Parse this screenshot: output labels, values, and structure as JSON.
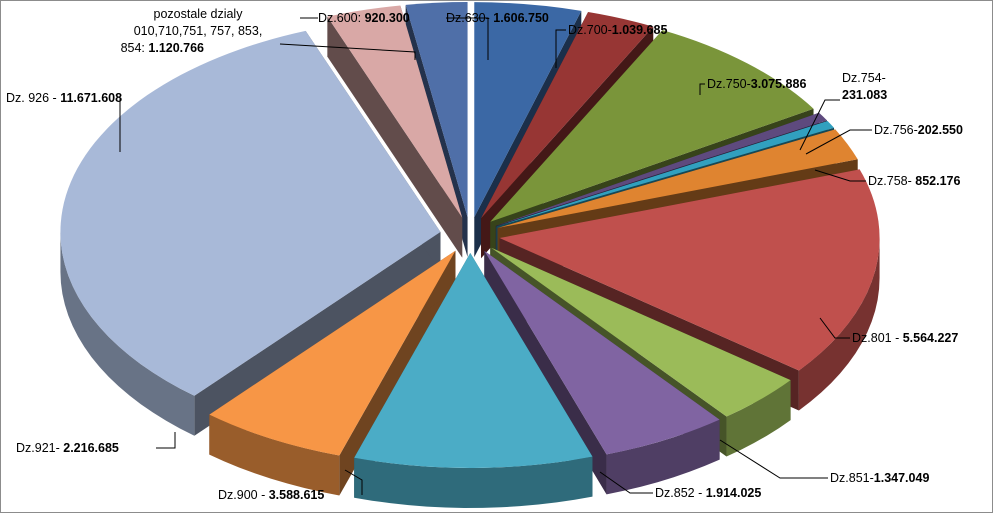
{
  "chart_data": {
    "type": "pie",
    "title": "",
    "slices": [
      {
        "label": "Dz.630",
        "sep": "- ",
        "value_text": "1.606.750",
        "value": 1606750,
        "color": "#3b68a5"
      },
      {
        "label": "Dz.700",
        "sep": "-",
        "value_text": "1.039.685",
        "value": 1039685,
        "color": "#973634"
      },
      {
        "label": "Dz.750",
        "sep": "-",
        "value_text": "3.075.886",
        "value": 3075886,
        "color": "#7a953a"
      },
      {
        "label": "Dz.754-",
        "sep": "",
        "value_text": "231.083",
        "value": 231083,
        "color": "#5e4a7e"
      },
      {
        "label": "Dz.756",
        "sep": "-",
        "value_text": "202.550",
        "value": 202550,
        "color": "#31a0bf"
      },
      {
        "label": "Dz.758",
        "sep": "- ",
        "value_text": "852.176",
        "value": 852176,
        "color": "#df8430"
      },
      {
        "label": "Dz.801",
        "sep": " - ",
        "value_text": "5.564.227",
        "value": 5564227,
        "color": "#c0504d"
      },
      {
        "label": "Dz.851",
        "sep": "-",
        "value_text": "1.347.049",
        "value": 1347049,
        "color": "#9bbb59"
      },
      {
        "label": "Dz.852",
        "sep": " - ",
        "value_text": "1.914.025",
        "value": 1914025,
        "color": "#8064a2"
      },
      {
        "label": "Dz.900",
        "sep": " - ",
        "value_text": "3.588.615",
        "value": 3588615,
        "color": "#4bacc6"
      },
      {
        "label": "Dz.921",
        "sep": "- ",
        "value_text": "2.216.685",
        "value": 2216685,
        "color": "#f79646"
      },
      {
        "label": "Dz. 926",
        "sep": " - ",
        "value_text": "11.671.608",
        "value": 11671608,
        "color": "#a8b9d8"
      },
      {
        "label": "pozostałe działy 010,710,751, 757, 853, 854:",
        "label_lines": [
          "pozostale dzialy",
          "010,710,751, 757, 853,",
          "854: "
        ],
        "sep": "",
        "value_text": "1.120.766",
        "value": 1120766,
        "color": "#d9a8a6"
      },
      {
        "label": "Dz.600:",
        "sep": " ",
        "value_text": "920.300",
        "value": 920300,
        "color": "#4f6fa8"
      }
    ]
  }
}
